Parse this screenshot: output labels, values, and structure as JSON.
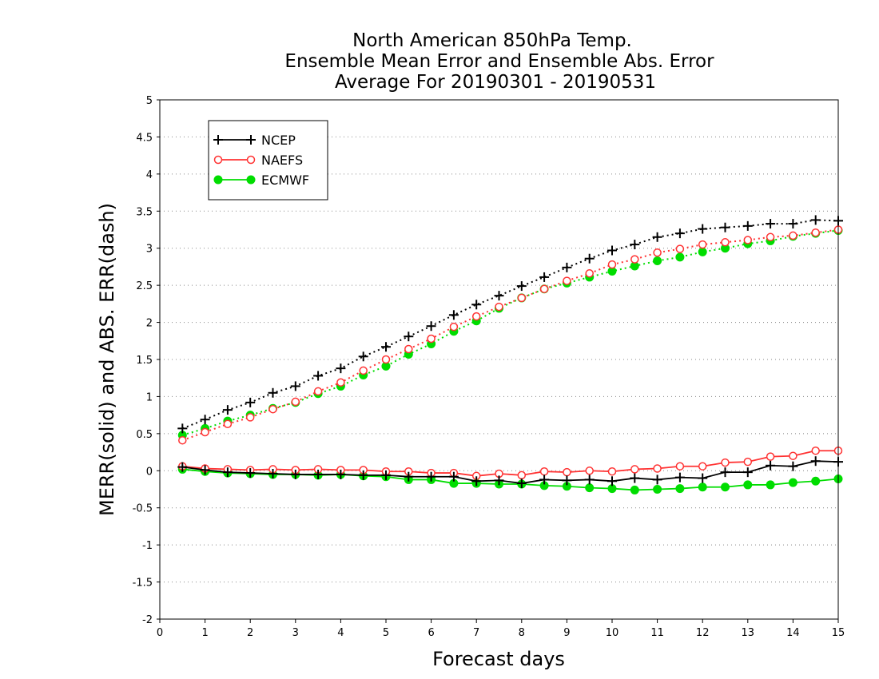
{
  "chart_data": {
    "type": "line",
    "title_lines": [
      "North American 850hPa Temp.",
      "Ensemble Mean Error and Ensemble Abs. Error",
      "Average For 20190301 - 20190531"
    ],
    "xlabel": "Forecast days",
    "ylabel": "MERR(solid) and ABS. ERR(dash)",
    "xlim": [
      0,
      15
    ],
    "ylim": [
      -2,
      5
    ],
    "xticks": [
      "0",
      "1",
      "2",
      "3",
      "4",
      "5",
      "6",
      "7",
      "8",
      "9",
      "10",
      "11",
      "12",
      "13",
      "14",
      "15"
    ],
    "yticks": [
      "-2",
      "-1.5",
      "-1",
      "-0.5",
      "0",
      "0.5",
      "1",
      "1.5",
      "2",
      "2.5",
      "3",
      "3.5",
      "4",
      "4.5",
      "5"
    ],
    "grid": "horizontal dotted",
    "legend_position": "top-left",
    "x": [
      0.5,
      1,
      1.5,
      2,
      2.5,
      3,
      3.5,
      4,
      4.5,
      5,
      5.5,
      6,
      6.5,
      7,
      7.5,
      8,
      8.5,
      9,
      9.5,
      10,
      10.5,
      11,
      11.5,
      12,
      12.5,
      13,
      13.5,
      14,
      14.5,
      15
    ],
    "series": [
      {
        "name": "NCEP",
        "color": "#000000",
        "marker": "plus",
        "merr": [
          0.05,
          0.01,
          -0.02,
          -0.03,
          -0.04,
          -0.05,
          -0.05,
          -0.05,
          -0.06,
          -0.06,
          -0.08,
          -0.08,
          -0.08,
          -0.14,
          -0.13,
          -0.17,
          -0.12,
          -0.13,
          -0.12,
          -0.14,
          -0.1,
          -0.12,
          -0.09,
          -0.1,
          -0.02,
          -0.02,
          0.07,
          0.06,
          0.13,
          0.12
        ],
        "abs_err": [
          0.57,
          0.69,
          0.82,
          0.92,
          1.05,
          1.14,
          1.28,
          1.38,
          1.54,
          1.67,
          1.81,
          1.95,
          2.1,
          2.24,
          2.36,
          2.49,
          2.61,
          2.74,
          2.86,
          2.97,
          3.05,
          3.15,
          3.2,
          3.26,
          3.28,
          3.3,
          3.33,
          3.33,
          3.38,
          3.37
        ]
      },
      {
        "name": "NAEFS",
        "color": "#ff3333",
        "marker": "open-circle",
        "merr": [
          0.06,
          0.03,
          0.02,
          0.01,
          0.02,
          0.01,
          0.02,
          0.01,
          0.01,
          -0.01,
          -0.01,
          -0.03,
          -0.03,
          -0.07,
          -0.04,
          -0.06,
          -0.01,
          -0.02,
          0.0,
          -0.01,
          0.02,
          0.03,
          0.06,
          0.06,
          0.11,
          0.12,
          0.19,
          0.2,
          0.27,
          0.27
        ],
        "abs_err": [
          0.41,
          0.52,
          0.63,
          0.72,
          0.83,
          0.93,
          1.07,
          1.19,
          1.35,
          1.5,
          1.64,
          1.78,
          1.94,
          2.08,
          2.21,
          2.33,
          2.45,
          2.56,
          2.66,
          2.78,
          2.85,
          2.94,
          2.99,
          3.05,
          3.08,
          3.11,
          3.15,
          3.17,
          3.21,
          3.25
        ]
      },
      {
        "name": "ECMWF",
        "color": "#00dd00",
        "marker": "filled-circle",
        "merr": [
          0.02,
          -0.01,
          -0.03,
          -0.04,
          -0.05,
          -0.05,
          -0.06,
          -0.05,
          -0.07,
          -0.08,
          -0.12,
          -0.12,
          -0.17,
          -0.17,
          -0.18,
          -0.18,
          -0.2,
          -0.21,
          -0.23,
          -0.24,
          -0.26,
          -0.25,
          -0.24,
          -0.22,
          -0.22,
          -0.19,
          -0.19,
          -0.16,
          -0.14,
          -0.11
        ],
        "abs_err": [
          0.48,
          0.57,
          0.67,
          0.75,
          0.84,
          0.92,
          1.04,
          1.14,
          1.29,
          1.41,
          1.57,
          1.71,
          1.88,
          2.02,
          2.19,
          2.33,
          2.45,
          2.53,
          2.61,
          2.69,
          2.76,
          2.83,
          2.88,
          2.95,
          3.0,
          3.06,
          3.1,
          3.16,
          3.2,
          3.24
        ]
      }
    ]
  }
}
